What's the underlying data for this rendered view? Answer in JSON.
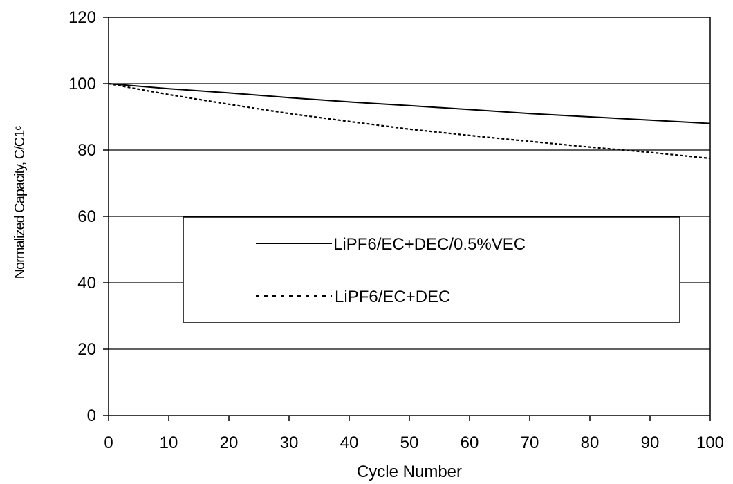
{
  "chart_data": {
    "type": "line",
    "title": "",
    "xlabel": "Cycle Number",
    "ylabel": "Normalized Capacity, C/C1ᶜ",
    "xlim": [
      0,
      100
    ],
    "ylim": [
      0,
      120
    ],
    "x_ticks": [
      "0",
      "10",
      "20",
      "30",
      "40",
      "50",
      "60",
      "70",
      "80",
      "90",
      "100"
    ],
    "y_ticks": [
      "0",
      "20",
      "40",
      "60",
      "80",
      "100",
      "120"
    ],
    "grid": "horizontal",
    "legend_position": "center",
    "series": [
      {
        "name": "LiPF6/EC+DEC/0.5%VEC",
        "style": "solid",
        "color": "#000000",
        "x": [
          0,
          10,
          20,
          30,
          40,
          50,
          60,
          70,
          80,
          90,
          100
        ],
        "y": [
          100,
          98.5,
          97.2,
          95.8,
          94.5,
          93.4,
          92.2,
          91.0,
          90.0,
          89.0,
          88.0
        ]
      },
      {
        "name": "LiPF6/EC+DEC",
        "style": "dotted",
        "color": "#000000",
        "x": [
          0,
          10,
          20,
          30,
          40,
          50,
          60,
          70,
          80,
          90,
          100
        ],
        "y": [
          100,
          96.7,
          93.8,
          91.0,
          88.6,
          86.3,
          84.4,
          82.6,
          80.9,
          79.3,
          77.5
        ]
      }
    ]
  }
}
